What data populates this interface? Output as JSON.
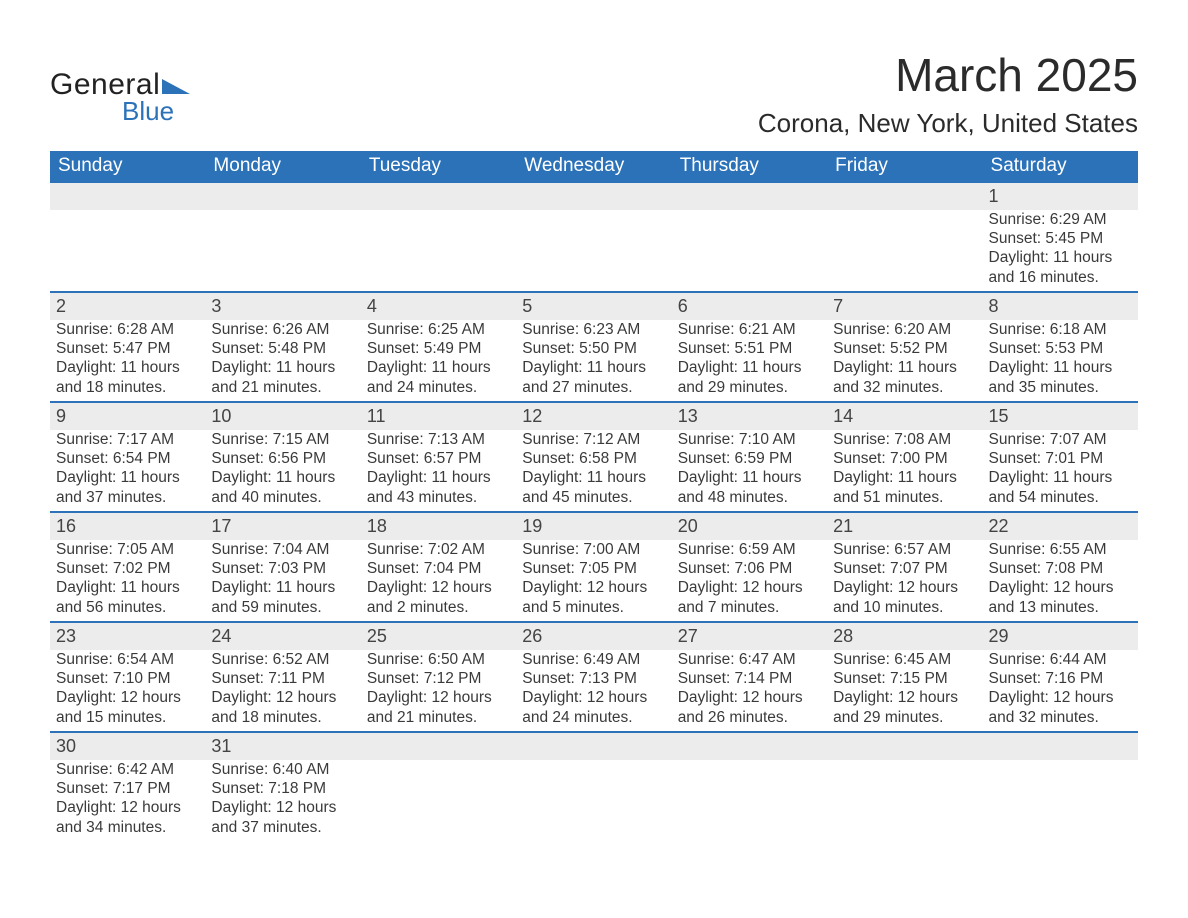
{
  "logo": {
    "text1": "General",
    "text2": "Blue",
    "tri_color": "#2b72b9"
  },
  "title": "March 2025",
  "location": "Corona, New York, United States",
  "colors": {
    "header_bg": "#2b72b9",
    "header_fg": "#ffffff",
    "daynum_bg": "#ececec",
    "row_border": "#2b72b9",
    "text": "#3a3a3a",
    "page_bg": "#ffffff"
  },
  "day_headers": [
    "Sunday",
    "Monday",
    "Tuesday",
    "Wednesday",
    "Thursday",
    "Friday",
    "Saturday"
  ],
  "weeks": [
    [
      null,
      null,
      null,
      null,
      null,
      null,
      {
        "n": "1",
        "sr": "Sunrise: 6:29 AM",
        "ss": "Sunset: 5:45 PM",
        "d1": "Daylight: 11 hours",
        "d2": "and 16 minutes."
      }
    ],
    [
      {
        "n": "2",
        "sr": "Sunrise: 6:28 AM",
        "ss": "Sunset: 5:47 PM",
        "d1": "Daylight: 11 hours",
        "d2": "and 18 minutes."
      },
      {
        "n": "3",
        "sr": "Sunrise: 6:26 AM",
        "ss": "Sunset: 5:48 PM",
        "d1": "Daylight: 11 hours",
        "d2": "and 21 minutes."
      },
      {
        "n": "4",
        "sr": "Sunrise: 6:25 AM",
        "ss": "Sunset: 5:49 PM",
        "d1": "Daylight: 11 hours",
        "d2": "and 24 minutes."
      },
      {
        "n": "5",
        "sr": "Sunrise: 6:23 AM",
        "ss": "Sunset: 5:50 PM",
        "d1": "Daylight: 11 hours",
        "d2": "and 27 minutes."
      },
      {
        "n": "6",
        "sr": "Sunrise: 6:21 AM",
        "ss": "Sunset: 5:51 PM",
        "d1": "Daylight: 11 hours",
        "d2": "and 29 minutes."
      },
      {
        "n": "7",
        "sr": "Sunrise: 6:20 AM",
        "ss": "Sunset: 5:52 PM",
        "d1": "Daylight: 11 hours",
        "d2": "and 32 minutes."
      },
      {
        "n": "8",
        "sr": "Sunrise: 6:18 AM",
        "ss": "Sunset: 5:53 PM",
        "d1": "Daylight: 11 hours",
        "d2": "and 35 minutes."
      }
    ],
    [
      {
        "n": "9",
        "sr": "Sunrise: 7:17 AM",
        "ss": "Sunset: 6:54 PM",
        "d1": "Daylight: 11 hours",
        "d2": "and 37 minutes."
      },
      {
        "n": "10",
        "sr": "Sunrise: 7:15 AM",
        "ss": "Sunset: 6:56 PM",
        "d1": "Daylight: 11 hours",
        "d2": "and 40 minutes."
      },
      {
        "n": "11",
        "sr": "Sunrise: 7:13 AM",
        "ss": "Sunset: 6:57 PM",
        "d1": "Daylight: 11 hours",
        "d2": "and 43 minutes."
      },
      {
        "n": "12",
        "sr": "Sunrise: 7:12 AM",
        "ss": "Sunset: 6:58 PM",
        "d1": "Daylight: 11 hours",
        "d2": "and 45 minutes."
      },
      {
        "n": "13",
        "sr": "Sunrise: 7:10 AM",
        "ss": "Sunset: 6:59 PM",
        "d1": "Daylight: 11 hours",
        "d2": "and 48 minutes."
      },
      {
        "n": "14",
        "sr": "Sunrise: 7:08 AM",
        "ss": "Sunset: 7:00 PM",
        "d1": "Daylight: 11 hours",
        "d2": "and 51 minutes."
      },
      {
        "n": "15",
        "sr": "Sunrise: 7:07 AM",
        "ss": "Sunset: 7:01 PM",
        "d1": "Daylight: 11 hours",
        "d2": "and 54 minutes."
      }
    ],
    [
      {
        "n": "16",
        "sr": "Sunrise: 7:05 AM",
        "ss": "Sunset: 7:02 PM",
        "d1": "Daylight: 11 hours",
        "d2": "and 56 minutes."
      },
      {
        "n": "17",
        "sr": "Sunrise: 7:04 AM",
        "ss": "Sunset: 7:03 PM",
        "d1": "Daylight: 11 hours",
        "d2": "and 59 minutes."
      },
      {
        "n": "18",
        "sr": "Sunrise: 7:02 AM",
        "ss": "Sunset: 7:04 PM",
        "d1": "Daylight: 12 hours",
        "d2": "and 2 minutes."
      },
      {
        "n": "19",
        "sr": "Sunrise: 7:00 AM",
        "ss": "Sunset: 7:05 PM",
        "d1": "Daylight: 12 hours",
        "d2": "and 5 minutes."
      },
      {
        "n": "20",
        "sr": "Sunrise: 6:59 AM",
        "ss": "Sunset: 7:06 PM",
        "d1": "Daylight: 12 hours",
        "d2": "and 7 minutes."
      },
      {
        "n": "21",
        "sr": "Sunrise: 6:57 AM",
        "ss": "Sunset: 7:07 PM",
        "d1": "Daylight: 12 hours",
        "d2": "and 10 minutes."
      },
      {
        "n": "22",
        "sr": "Sunrise: 6:55 AM",
        "ss": "Sunset: 7:08 PM",
        "d1": "Daylight: 12 hours",
        "d2": "and 13 minutes."
      }
    ],
    [
      {
        "n": "23",
        "sr": "Sunrise: 6:54 AM",
        "ss": "Sunset: 7:10 PM",
        "d1": "Daylight: 12 hours",
        "d2": "and 15 minutes."
      },
      {
        "n": "24",
        "sr": "Sunrise: 6:52 AM",
        "ss": "Sunset: 7:11 PM",
        "d1": "Daylight: 12 hours",
        "d2": "and 18 minutes."
      },
      {
        "n": "25",
        "sr": "Sunrise: 6:50 AM",
        "ss": "Sunset: 7:12 PM",
        "d1": "Daylight: 12 hours",
        "d2": "and 21 minutes."
      },
      {
        "n": "26",
        "sr": "Sunrise: 6:49 AM",
        "ss": "Sunset: 7:13 PM",
        "d1": "Daylight: 12 hours",
        "d2": "and 24 minutes."
      },
      {
        "n": "27",
        "sr": "Sunrise: 6:47 AM",
        "ss": "Sunset: 7:14 PM",
        "d1": "Daylight: 12 hours",
        "d2": "and 26 minutes."
      },
      {
        "n": "28",
        "sr": "Sunrise: 6:45 AM",
        "ss": "Sunset: 7:15 PM",
        "d1": "Daylight: 12 hours",
        "d2": "and 29 minutes."
      },
      {
        "n": "29",
        "sr": "Sunrise: 6:44 AM",
        "ss": "Sunset: 7:16 PM",
        "d1": "Daylight: 12 hours",
        "d2": "and 32 minutes."
      }
    ],
    [
      {
        "n": "30",
        "sr": "Sunrise: 6:42 AM",
        "ss": "Sunset: 7:17 PM",
        "d1": "Daylight: 12 hours",
        "d2": "and 34 minutes."
      },
      {
        "n": "31",
        "sr": "Sunrise: 6:40 AM",
        "ss": "Sunset: 7:18 PM",
        "d1": "Daylight: 12 hours",
        "d2": "and 37 minutes."
      },
      null,
      null,
      null,
      null,
      null
    ]
  ]
}
